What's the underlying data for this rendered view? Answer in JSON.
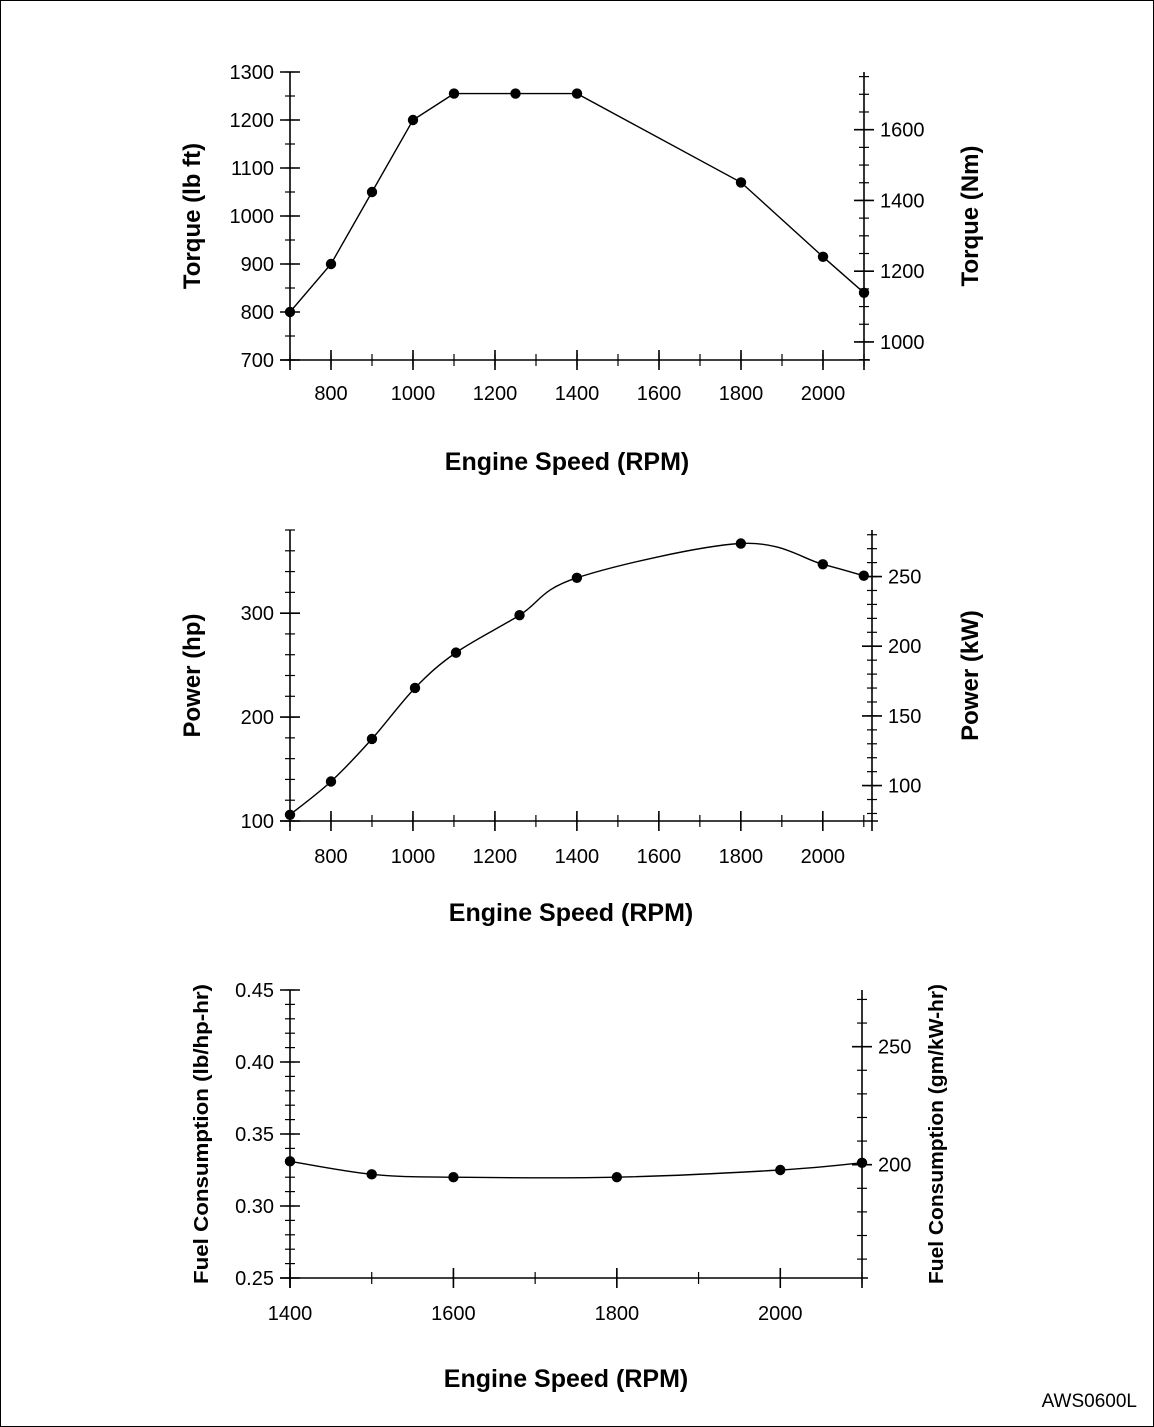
{
  "figure_code": "AWS0600L",
  "chart_data": [
    {
      "type": "line",
      "title": "",
      "xlabel": "Engine Speed (RPM)",
      "ylabel": "Torque (lb ft)",
      "y2label": "Torque (Nm)",
      "xlim": [
        700,
        2100
      ],
      "ylim": [
        700,
        1300
      ],
      "y2lim": [
        949,
        1763
      ],
      "x_ticks": [
        800,
        1000,
        1200,
        1400,
        1600,
        1800,
        2000
      ],
      "y_ticks": [
        700,
        800,
        900,
        1000,
        1100,
        1200,
        1300
      ],
      "y2_ticks": [
        1000,
        1200,
        1400,
        1600
      ],
      "grid": false,
      "curve": "linear",
      "series": [
        {
          "x": [
            700,
            800,
            900,
            1000,
            1100,
            1250,
            1400,
            1800,
            2000,
            2100
          ],
          "y": [
            800,
            900,
            1050,
            1200,
            1255,
            1255,
            1255,
            1070,
            915,
            840
          ]
        }
      ]
    },
    {
      "type": "line",
      "title": "",
      "xlabel": "Engine Speed (RPM)",
      "ylabel": "Power (hp)",
      "y2label": "Power (kW)",
      "xlim": [
        700,
        2120
      ],
      "ylim": [
        100,
        380
      ],
      "y2lim": [
        74.6,
        283.4
      ],
      "x_ticks": [
        800,
        1000,
        1200,
        1400,
        1600,
        1800,
        2000
      ],
      "y_ticks": [
        100,
        200,
        300
      ],
      "y2_ticks": [
        100,
        150,
        200,
        250
      ],
      "grid": false,
      "curve": "smooth",
      "series": [
        {
          "x": [
            700,
            800,
            900,
            1005,
            1105,
            1260,
            1400,
            1800,
            2000,
            2100
          ],
          "y": [
            106,
            138,
            179,
            228,
            262,
            298,
            334,
            367,
            347,
            336
          ]
        }
      ]
    },
    {
      "type": "line",
      "title": "",
      "xlabel": "Engine Speed (RPM)",
      "ylabel": "Fuel Consumption (lb/hp-hr)",
      "y2label": "Fuel Consumption (gm/kW-hr)",
      "xlim": [
        1400,
        2100
      ],
      "ylim": [
        0.25,
        0.45
      ],
      "y2lim": [
        152,
        274
      ],
      "x_ticks": [
        1400,
        1600,
        1800,
        2000
      ],
      "y_ticks": [
        0.25,
        0.3,
        0.35,
        0.4,
        0.45
      ],
      "y2_ticks": [
        200,
        250
      ],
      "grid": false,
      "curve": "smooth",
      "series": [
        {
          "x": [
            1400,
            1500,
            1600,
            1800,
            2000,
            2100
          ],
          "y": [
            0.331,
            0.322,
            0.32,
            0.32,
            0.325,
            0.33
          ]
        }
      ]
    }
  ]
}
